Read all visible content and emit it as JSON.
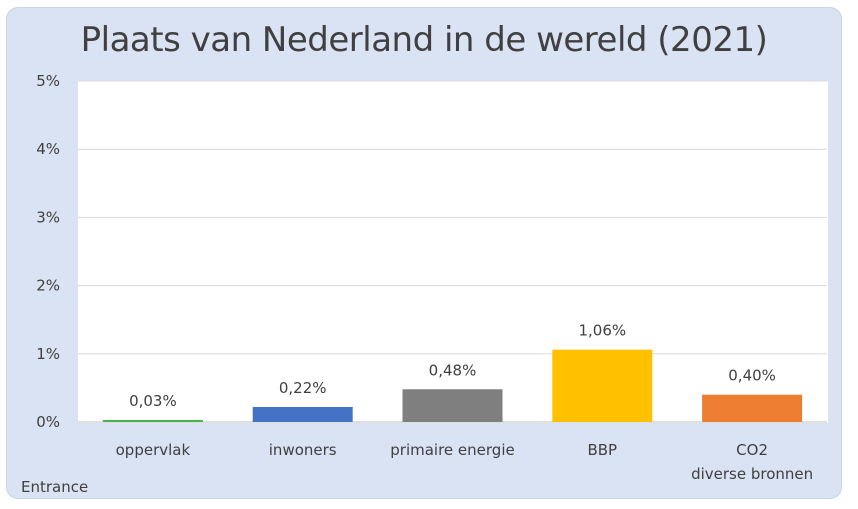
{
  "footer_note": "Entrance",
  "chart_data": {
    "type": "bar",
    "title": "Plaats van Nederland in de wereld (2021)",
    "categories": [
      "oppervlak",
      "inwoners",
      "primaire energie",
      "BBP",
      "CO2\ndiverse bronnen"
    ],
    "values": [
      0.03,
      0.22,
      0.48,
      1.06,
      0.4
    ],
    "value_labels": [
      "0,03%",
      "0,22%",
      "0,48%",
      "1,06%",
      "0,40%"
    ],
    "colors": [
      "#4caf50",
      "#4472c4",
      "#7f7f7f",
      "#ffc000",
      "#ed7d31"
    ],
    "ylim": [
      0,
      5
    ],
    "yticks": [
      0,
      1,
      2,
      3,
      4,
      5
    ],
    "ytick_labels": [
      "0%",
      "1%",
      "2%",
      "3%",
      "4%",
      "5%"
    ],
    "grid": true,
    "legend": "none"
  }
}
